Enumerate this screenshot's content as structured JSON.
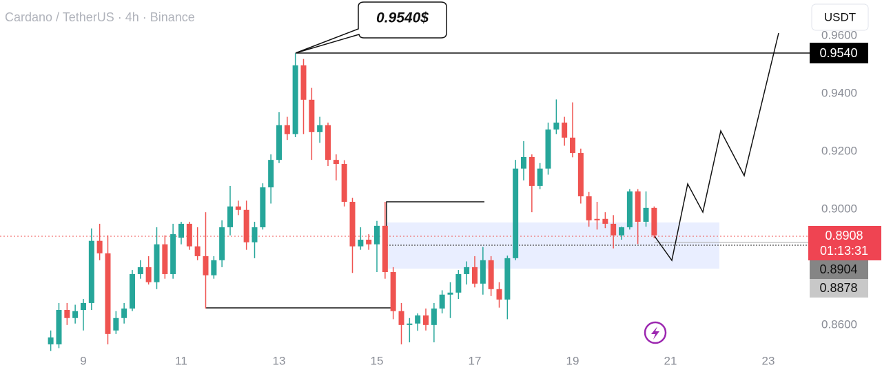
{
  "chart_data": {
    "type": "candlestick",
    "title": "Cardano / TetherUS · 4h · Binance",
    "currency": "USDT",
    "annotation": "0.9540$",
    "price_tags": [
      {
        "value": 0.954,
        "label": "0.9540"
      },
      {
        "value": 0.8908,
        "label": "0.8908"
      },
      {
        "value": 0.8904,
        "label": "0.8904"
      },
      {
        "value": 0.8878,
        "label": "0.8878"
      }
    ],
    "countdown": "01:13:31",
    "up_color": "#26a69a",
    "down_color": "#ef5350",
    "xlim": [
      7.296,
      23.704
    ],
    "ylim": [
      0.8521,
      0.9724
    ],
    "xticks": [
      9,
      11,
      13,
      15,
      17,
      19,
      21,
      23
    ],
    "yticks": [
      {
        "value": 0.86,
        "label": "0.8600"
      },
      {
        "value": 0.9,
        "label": "0.9000"
      },
      {
        "value": 0.92,
        "label": "0.9200"
      },
      {
        "value": 0.94,
        "label": "0.9400"
      },
      {
        "value": 0.96,
        "label": "0.9600"
      }
    ],
    "x": [
      8.333,
      8.5,
      8.667,
      8.833,
      9,
      9.167,
      9.333,
      9.5,
      9.667,
      9.833,
      10,
      10.167,
      10.333,
      10.5,
      10.667,
      10.833,
      11,
      11.167,
      11.333,
      11.5,
      11.667,
      11.833,
      12,
      12.167,
      12.333,
      12.5,
      12.667,
      12.833,
      13,
      13.167,
      13.333,
      13.5,
      13.667,
      13.833,
      14,
      14.167,
      14.333,
      14.5,
      14.667,
      14.833,
      15,
      15.167,
      15.333,
      15.5,
      15.667,
      15.833,
      16,
      16.167,
      16.333,
      16.5,
      16.667,
      16.833,
      17,
      17.167,
      17.333,
      17.5,
      17.667,
      17.833,
      18,
      18.167,
      18.333,
      18.5,
      18.667,
      18.833,
      19,
      19.167,
      19.333,
      19.5,
      19.667,
      19.833,
      20,
      20.167,
      20.333,
      20.5,
      20.667
    ],
    "open": [
      0.8533,
      0.8533,
      0.8652,
      0.8624,
      0.8652,
      0.8676,
      0.8891,
      0.8848,
      0.8581,
      0.8624,
      0.8657,
      0.8776,
      0.88,
      0.8748,
      0.8879,
      0.8776,
      0.8902,
      0.895,
      0.8872,
      0.8838,
      0.8772,
      0.8824,
      0.8938,
      0.901,
      0.8998,
      0.8886,
      0.8938,
      0.9076,
      0.9171,
      0.9291,
      0.926,
      0.9498,
      0.9379,
      0.9267,
      0.9291,
      0.9171,
      0.9157,
      0.9026,
      0.8872,
      0.8895,
      0.8879,
      0.8943,
      0.8783,
      0.8648,
      0.86,
      0.8605,
      0.8633,
      0.86,
      0.8657,
      0.8705,
      0.8712,
      0.8776,
      0.88,
      0.8743,
      0.8824,
      0.8724,
      0.8688,
      0.8831,
      0.9141,
      0.9181,
      0.9081,
      0.9141,
      0.9276,
      0.93,
      0.9248,
      0.9195,
      0.9045,
      0.8967,
      0.8967,
      0.895,
      0.891,
      0.8938,
      0.9062,
      0.8957,
      0.9005
    ],
    "high": [
      0.8581,
      0.8676,
      0.8676,
      0.867,
      0.869,
      0.8934,
      0.895,
      0.891,
      0.8648,
      0.8676,
      0.879,
      0.8824,
      0.8838,
      0.8938,
      0.891,
      0.895,
      0.8957,
      0.8957,
      0.8938,
      0.899,
      0.8838,
      0.8962,
      0.9081,
      0.903,
      0.903,
      0.8957,
      0.909,
      0.919,
      0.9336,
      0.932,
      0.954,
      0.952,
      0.942,
      0.932,
      0.93,
      0.919,
      0.917,
      0.904,
      0.8938,
      0.8914,
      0.896,
      0.9026,
      0.88,
      0.8676,
      0.8624,
      0.864,
      0.8657,
      0.8676,
      0.872,
      0.8748,
      0.879,
      0.882,
      0.8838,
      0.887,
      0.8838,
      0.8748,
      0.884,
      0.9171,
      0.9236,
      0.919,
      0.916,
      0.93,
      0.938,
      0.932,
      0.937,
      0.921,
      0.906,
      0.9026,
      0.899,
      0.898,
      0.894,
      0.907,
      0.907,
      0.9062,
      0.901
    ],
    "low": [
      0.851,
      0.852,
      0.86,
      0.8605,
      0.8581,
      0.8652,
      0.8824,
      0.8533,
      0.8569,
      0.8605,
      0.8648,
      0.876,
      0.874,
      0.8724,
      0.876,
      0.876,
      0.8879,
      0.886,
      0.8824,
      0.8657,
      0.876,
      0.88,
      0.891,
      0.898,
      0.886,
      0.8831,
      0.893,
      0.902,
      0.916,
      0.924,
      0.925,
      0.926,
      0.9171,
      0.923,
      0.915,
      0.91,
      0.901,
      0.878,
      0.886,
      0.886,
      0.8783,
      0.876,
      0.862,
      0.8533,
      0.854,
      0.858,
      0.8581,
      0.854,
      0.864,
      0.8624,
      0.869,
      0.874,
      0.873,
      0.8705,
      0.87,
      0.866,
      0.862,
      0.8824,
      0.91,
      0.899,
      0.907,
      0.912,
      0.926,
      0.922,
      0.918,
      0.902,
      0.894,
      0.893,
      0.8935,
      0.8865,
      0.8895,
      0.893,
      0.888,
      0.894,
      0.89
    ],
    "close": [
      0.8557,
      0.8652,
      0.8624,
      0.8648,
      0.8676,
      0.8891,
      0.8848,
      0.8569,
      0.8624,
      0.8657,
      0.8776,
      0.88,
      0.8748,
      0.8879,
      0.8776,
      0.8914,
      0.895,
      0.8872,
      0.8838,
      0.8772,
      0.8824,
      0.8938,
      0.901,
      0.8998,
      0.8886,
      0.8938,
      0.9076,
      0.9171,
      0.9291,
      0.926,
      0.9498,
      0.9379,
      0.9267,
      0.9291,
      0.9171,
      0.9157,
      0.9026,
      0.8872,
      0.8895,
      0.8879,
      0.8943,
      0.8783,
      0.8648,
      0.86,
      0.8605,
      0.8633,
      0.86,
      0.8657,
      0.8705,
      0.8712,
      0.8776,
      0.88,
      0.8743,
      0.8824,
      0.8724,
      0.8688,
      0.8831,
      0.9141,
      0.9181,
      0.9081,
      0.9141,
      0.9276,
      0.93,
      0.9248,
      0.9195,
      0.9045,
      0.8962,
      0.8962,
      0.895,
      0.891,
      0.8938,
      0.9062,
      0.8957,
      0.9005,
      0.891
    ]
  }
}
